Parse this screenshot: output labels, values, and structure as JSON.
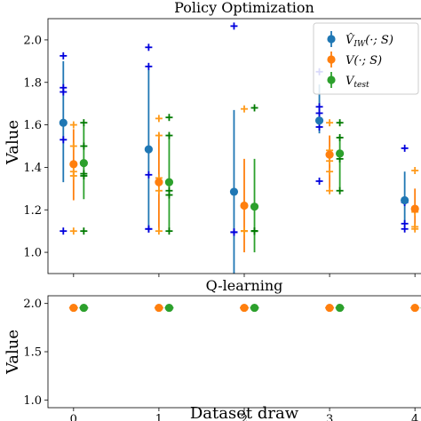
{
  "chart_data": [
    {
      "type": "scatter",
      "title": "Policy Optimization",
      "ylabel": "Value",
      "xlabel": "",
      "xlim": [
        -0.3,
        4.3
      ],
      "ylim": [
        0.9,
        2.1
      ],
      "xticks": [
        0,
        1,
        2,
        3,
        4
      ],
      "yticks": [
        "1.0",
        "1.2",
        "1.4",
        "1.6",
        "1.8",
        "2.0"
      ],
      "ytick_values": [
        1.0,
        1.2,
        1.4,
        1.6,
        1.8,
        2.0
      ],
      "legend": {
        "placement": "top-right"
      },
      "series": [
        {
          "name": "V̂_IW(·;S)",
          "name_main": "V̂",
          "name_sub": "IW",
          "name_args": "(·; S)",
          "color": "#1f77b4",
          "cross_color": "#0000dd",
          "x_offset": -0.12,
          "mean": [
            1.61,
            1.485,
            1.285,
            1.62,
            1.245
          ],
          "err_low": [
            1.33,
            1.11,
            0.9,
            1.56,
            1.14
          ],
          "err_high": [
            1.9,
            1.86,
            1.67,
            1.79,
            1.38
          ],
          "draws": [
            [
              1.925,
              1.775,
              1.755,
              1.53,
              1.1
            ],
            [
              1.965,
              1.875,
              1.365,
              1.11,
              1.11
            ],
            [
              2.065,
              1.095,
              1.095,
              1.095,
              1.095
            ],
            [
              1.85,
              1.685,
              1.655,
              1.59,
              1.335
            ],
            [
              1.49,
              1.245,
              1.235,
              1.135,
              1.11
            ]
          ]
        },
        {
          "name": "V(·;S)",
          "name_main": "V",
          "name_sub": "",
          "name_args": "(·; S)",
          "color": "#ff7f0e",
          "cross_color": "#ff9a1a",
          "x_offset": 0.0,
          "mean": [
            1.415,
            1.33,
            1.22,
            1.46,
            1.205
          ],
          "err_low": [
            1.245,
            1.1,
            1.0,
            1.3,
            1.12
          ],
          "err_high": [
            1.58,
            1.56,
            1.44,
            1.55,
            1.3
          ],
          "draws": [
            [
              1.6,
              1.5,
              1.38,
              1.36,
              1.1
            ],
            [
              1.63,
              1.55,
              1.35,
              1.29,
              1.1
            ],
            [
              1.675,
              1.1,
              1.1,
              1.1,
              1.1
            ],
            [
              1.61,
              1.48,
              1.43,
              1.38,
              1.29
            ],
            [
              1.385,
              1.2,
              1.19,
              1.12,
              1.11
            ]
          ]
        },
        {
          "name": "V_test",
          "name_main": "V",
          "name_sub": "test",
          "name_args": "",
          "color": "#2ca02c",
          "cross_color": "#007a00",
          "x_offset": 0.12,
          "mean": [
            1.42,
            1.33,
            1.215,
            1.465,
            1.2
          ],
          "err_low": [
            1.25,
            1.1,
            1.0,
            1.3,
            1.1
          ],
          "err_high": [
            1.6,
            1.56,
            1.44,
            1.55,
            1.3
          ],
          "draws": [
            [
              1.61,
              1.5,
              1.37,
              1.36,
              1.1
            ],
            [
              1.635,
              1.55,
              1.27,
              1.29,
              1.1
            ],
            [
              1.68,
              1.1,
              1.1,
              1.1,
              1.1
            ],
            [
              1.61,
              1.54,
              1.46,
              1.44,
              1.29
            ],
            [
              1.385,
              1.21,
              1.19,
              1.12,
              1.1
            ]
          ]
        }
      ]
    },
    {
      "type": "scatter",
      "title": "Q-learning",
      "ylabel": "Value",
      "xlabel": "Dataset draw",
      "xlim": [
        -0.3,
        4.3
      ],
      "ylim": [
        0.92,
        2.08
      ],
      "xticks": [
        0,
        1,
        2,
        3,
        4
      ],
      "yticks": [
        "1.0",
        "1.5",
        "2.0"
      ],
      "ytick_values": [
        1.0,
        1.5,
        2.0
      ],
      "series": [
        {
          "color": "#ff7f0e",
          "x_offset": 0.0,
          "mean": [
            1.955,
            1.955,
            1.955,
            1.955,
            1.955
          ]
        },
        {
          "color": "#2ca02c",
          "x_offset": 0.12,
          "mean": [
            1.955,
            1.955,
            1.955,
            1.955,
            1.955
          ]
        }
      ]
    }
  ]
}
